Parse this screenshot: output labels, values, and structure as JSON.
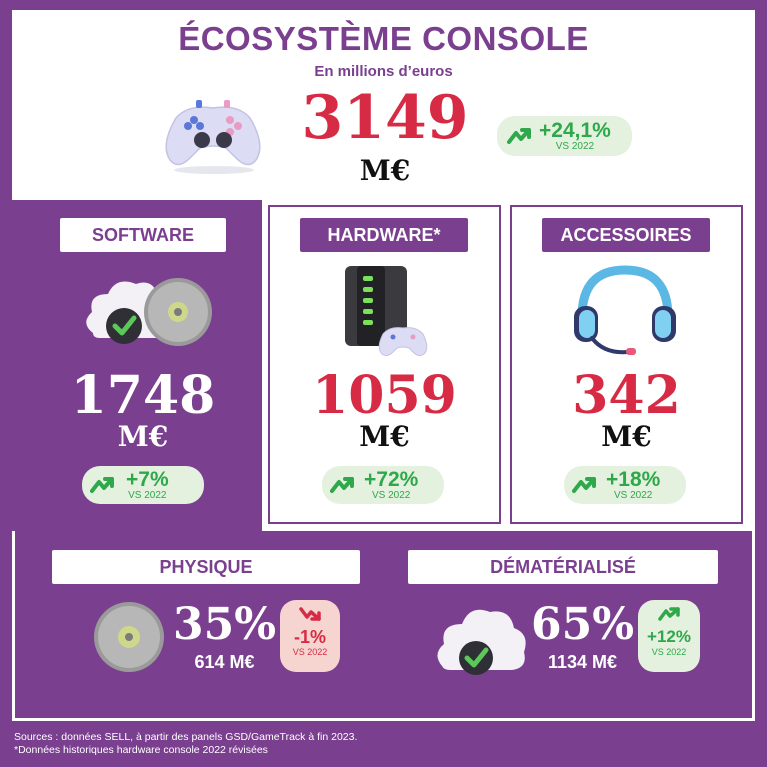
{
  "header": {
    "title": "ÉCOSYSTÈME CONSOLE",
    "subtitle": "En millions d’euros",
    "total_value": "3149",
    "total_unit": "M€",
    "total_change": "+24,1%",
    "total_vs": "VS 2022"
  },
  "software": {
    "label": "SOFTWARE",
    "value": "1748",
    "unit": "M€",
    "change": "+7%",
    "vs": "VS 2022"
  },
  "hardware": {
    "label": "HARDWARE*",
    "value": "1059",
    "unit": "M€",
    "change": "+72%",
    "vs": "VS 2022"
  },
  "accessoires": {
    "label": "ACCESSOIRES",
    "value": "342",
    "unit": "M€",
    "change": "+18%",
    "vs": "VS 2022"
  },
  "physique": {
    "label": "PHYSIQUE",
    "share": "35%",
    "value": "614 M€",
    "change": "-1%",
    "vs": "VS 2022"
  },
  "dematerialise": {
    "label": "DÉMATÉRIALISÉ",
    "share": "65%",
    "value": "1134 M€",
    "change": "+12%",
    "vs": "VS 2022"
  },
  "footer": {
    "sources": "Sources : données SELL, à partir des panels GSD/GameTrack à fin 2023.",
    "note": "*Données historiques hardware console 2022 révisées"
  },
  "colors": {
    "purple": "#7b3f8f",
    "red": "#d72b45",
    "green": "#2ea84a",
    "green_bg": "#e3f1de",
    "red_bg": "#f6d4cf"
  }
}
